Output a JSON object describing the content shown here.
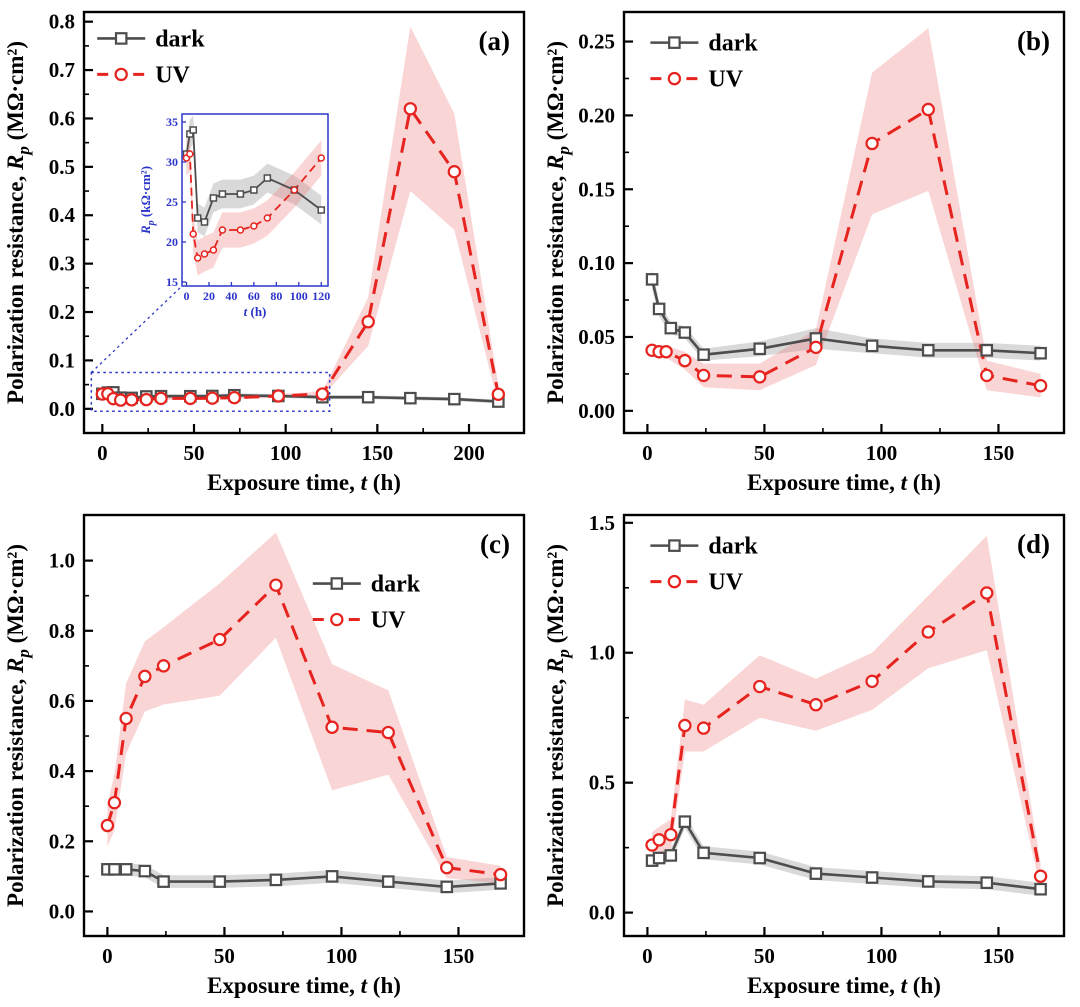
{
  "figure": {
    "background": "#ffffff",
    "colors": {
      "dark": "#4d4d4d",
      "uv": "#e6231e",
      "dark_band": "#a0a0a0",
      "uv_band": "#ef7f7f",
      "inset_accent": "#2b35c8",
      "marker_fill": "#ffffff",
      "frame": "#000000"
    },
    "legend_labels": {
      "dark": "dark",
      "uv": "UV"
    }
  },
  "chart_data": [
    {
      "id": "a",
      "type": "line",
      "panel_label": "(a)",
      "xlabel": {
        "prefix": "Exposure time, ",
        "symbol": "t",
        "suffix": " (h)"
      },
      "ylabel": {
        "prefix": "Polarization resistance, ",
        "symbol": "R",
        "sub": "p",
        "suffix": " (MΩ·cm²)"
      },
      "xlim": [
        -10,
        230
      ],
      "ylim": [
        -0.05,
        0.82
      ],
      "xticks": {
        "v": [
          0,
          50,
          100,
          150,
          200
        ],
        "l": [
          "0",
          "50",
          "100",
          "150",
          "200"
        ]
      },
      "yticks": {
        "v": [
          0,
          0.1,
          0.2,
          0.3,
          0.4,
          0.5,
          0.6,
          0.7,
          0.8
        ],
        "l": [
          "0.0",
          "0.1",
          "0.2",
          "0.3",
          "0.4",
          "0.5",
          "0.6",
          "0.7",
          "0.8"
        ]
      },
      "legend": {
        "fx": 0.03,
        "fy": 0.02
      },
      "series": [
        {
          "key": "dark",
          "x": [
            0,
            3,
            6,
            10,
            16,
            24,
            32,
            48,
            60,
            72,
            96,
            120,
            145,
            168,
            192,
            216
          ],
          "y": [
            0.031,
            0.0335,
            0.034,
            0.023,
            0.0225,
            0.0255,
            0.026,
            0.026,
            0.0265,
            0.028,
            0.0265,
            0.024,
            0.024,
            0.022,
            0.02,
            0.015
          ],
          "err": [
            0.004,
            0.004,
            0.004,
            0.004,
            0.004,
            0.004,
            0.004,
            0.004,
            0.004,
            0.004,
            0.004,
            0.004,
            0.004,
            0.004,
            0.004,
            0.004
          ]
        },
        {
          "key": "uv",
          "x": [
            0,
            3,
            6,
            10,
            16,
            24,
            32,
            48,
            60,
            72,
            96,
            120,
            145,
            168,
            192,
            216
          ],
          "y": [
            0.0305,
            0.031,
            0.021,
            0.018,
            0.0185,
            0.019,
            0.0215,
            0.0215,
            0.022,
            0.023,
            0.0265,
            0.0305,
            0.18,
            0.62,
            0.49,
            0.03
          ],
          "err": [
            0.003,
            0.003,
            0.003,
            0.003,
            0.003,
            0.003,
            0.003,
            0.003,
            0.003,
            0.003,
            0.004,
            0.005,
            0.05,
            0.17,
            0.12,
            0.02
          ]
        }
      ],
      "zoom_rect": {
        "x0": -6,
        "y0": -0.005,
        "x1": 124,
        "y1": 0.075
      },
      "inset": {
        "xlabel": {
          "symbol": "t",
          "suffix": " (h)"
        },
        "ylabel": {
          "symbol": "R",
          "sub": "p",
          "suffix": " (kΩ·cm²)"
        },
        "xlim": [
          -4,
          126
        ],
        "ylim": [
          14.5,
          36
        ],
        "xticks": {
          "v": [
            0,
            20,
            40,
            60,
            80,
            100,
            120
          ],
          "l": [
            "0",
            "20",
            "40",
            "60",
            "80",
            "100",
            "120"
          ]
        },
        "yticks": {
          "v": [
            15,
            20,
            25,
            30,
            35
          ],
          "l": [
            "15",
            "20",
            "25",
            "30",
            "35"
          ]
        },
        "series": [
          {
            "key": "dark",
            "x": [
              0,
              3,
              6,
              10,
              16,
              24,
              32,
              48,
              60,
              72,
              96,
              120
            ],
            "y": [
              31,
              33.5,
              34,
              23,
              22.5,
              25.5,
              26,
              26,
              26.5,
              28,
              26.5,
              24
            ],
            "err": [
              1.8,
              1.8,
              1.8,
              1.8,
              1.8,
              1.8,
              1.8,
              1.8,
              1.8,
              1.8,
              1.8,
              1.8
            ]
          },
          {
            "key": "uv",
            "x": [
              0,
              3,
              6,
              10,
              16,
              24,
              32,
              48,
              60,
              72,
              96,
              120
            ],
            "y": [
              30.5,
              31,
              21,
              18,
              18.5,
              19,
              21.5,
              21.5,
              22,
              23,
              26.5,
              30.5
            ],
            "err": [
              2.2,
              2.2,
              2.2,
              2.2,
              2.2,
              2.2,
              2.2,
              2.2,
              2.2,
              2.2,
              2.2,
              2.2
            ]
          }
        ]
      }
    },
    {
      "id": "b",
      "type": "line",
      "panel_label": "(b)",
      "xlabel": {
        "prefix": "Exposure time, ",
        "symbol": "t",
        "suffix": " (h)"
      },
      "ylabel": {
        "prefix": "Polarization resistance, ",
        "symbol": "R",
        "sub": "p",
        "suffix": " (MΩ·cm²)"
      },
      "xlim": [
        -10,
        178
      ],
      "ylim": [
        -0.015,
        0.27
      ],
      "xticks": {
        "v": [
          0,
          50,
          100,
          150
        ],
        "l": [
          "0",
          "50",
          "100",
          "150"
        ]
      },
      "yticks": {
        "v": [
          0,
          0.05,
          0.1,
          0.15,
          0.2,
          0.25
        ],
        "l": [
          "0.00",
          "0.05",
          "0.10",
          "0.15",
          "0.20",
          "0.25"
        ]
      },
      "legend": {
        "fx": 0.06,
        "fy": 0.03
      },
      "series": [
        {
          "key": "dark",
          "x": [
            2,
            5,
            10,
            16,
            24,
            48,
            72,
            96,
            120,
            145,
            168
          ],
          "y": [
            0.089,
            0.069,
            0.056,
            0.053,
            0.038,
            0.042,
            0.049,
            0.044,
            0.041,
            0.041,
            0.039
          ],
          "err": [
            0.007,
            0.005,
            0.004,
            0.004,
            0.004,
            0.005,
            0.007,
            0.005,
            0.005,
            0.005,
            0.005
          ]
        },
        {
          "key": "uv",
          "x": [
            2,
            5,
            8,
            16,
            24,
            48,
            72,
            96,
            120,
            145,
            168
          ],
          "y": [
            0.041,
            0.04,
            0.04,
            0.034,
            0.024,
            0.023,
            0.043,
            0.181,
            0.204,
            0.024,
            0.017
          ],
          "err": [
            0.004,
            0.004,
            0.004,
            0.006,
            0.008,
            0.009,
            0.012,
            0.048,
            0.055,
            0.01,
            0.008
          ]
        }
      ]
    },
    {
      "id": "c",
      "type": "line",
      "panel_label": "(c)",
      "xlabel": {
        "prefix": "Exposure time, ",
        "symbol": "t",
        "suffix": " (h)"
      },
      "ylabel": {
        "prefix": "Polarization resistance, ",
        "symbol": "R",
        "sub": "p",
        "suffix": " (MΩ·cm²)"
      },
      "xlim": [
        -10,
        178
      ],
      "ylim": [
        -0.07,
        1.13
      ],
      "xticks": {
        "v": [
          0,
          50,
          100,
          150
        ],
        "l": [
          "0",
          "50",
          "100",
          "150"
        ]
      },
      "yticks": {
        "v": [
          0,
          0.2,
          0.4,
          0.6,
          0.8,
          1.0
        ],
        "l": [
          "0.0",
          "0.2",
          "0.4",
          "0.6",
          "0.8",
          "1.0"
        ]
      },
      "legend": {
        "fx": 0.52,
        "fy": 0.12
      },
      "series": [
        {
          "key": "dark",
          "x": [
            0,
            3,
            8,
            16,
            24,
            48,
            72,
            96,
            120,
            145,
            168
          ],
          "y": [
            0.12,
            0.12,
            0.12,
            0.115,
            0.085,
            0.085,
            0.09,
            0.1,
            0.085,
            0.07,
            0.08
          ],
          "err": [
            0.018,
            0.018,
            0.018,
            0.018,
            0.018,
            0.018,
            0.018,
            0.018,
            0.018,
            0.018,
            0.018
          ]
        },
        {
          "key": "uv",
          "x": [
            0,
            3,
            8,
            16,
            24,
            48,
            72,
            96,
            120,
            145,
            168
          ],
          "y": [
            0.245,
            0.31,
            0.55,
            0.67,
            0.7,
            0.775,
            0.93,
            0.525,
            0.51,
            0.125,
            0.105
          ],
          "err": [
            0.06,
            0.08,
            0.1,
            0.1,
            0.11,
            0.16,
            0.15,
            0.18,
            0.12,
            0.03,
            0.025
          ]
        }
      ]
    },
    {
      "id": "d",
      "type": "line",
      "panel_label": "(d)",
      "xlabel": {
        "prefix": "Exposure time, ",
        "symbol": "t",
        "suffix": " (h)"
      },
      "ylabel": {
        "prefix": "Polarization resistance, ",
        "symbol": "R",
        "sub": "p",
        "suffix": " (MΩ·cm²)"
      },
      "xlim": [
        -10,
        178
      ],
      "ylim": [
        -0.09,
        1.53
      ],
      "xticks": {
        "v": [
          0,
          50,
          100,
          150
        ],
        "l": [
          "0",
          "50",
          "100",
          "150"
        ]
      },
      "yticks": {
        "v": [
          0,
          0.5,
          1.0,
          1.5
        ],
        "l": [
          "0.0",
          "0.5",
          "1.0",
          "1.5"
        ]
      },
      "legend": {
        "fx": 0.06,
        "fy": 0.03
      },
      "series": [
        {
          "key": "dark",
          "x": [
            2,
            5,
            10,
            16,
            24,
            48,
            72,
            96,
            120,
            145,
            168
          ],
          "y": [
            0.2,
            0.21,
            0.22,
            0.35,
            0.23,
            0.21,
            0.15,
            0.135,
            0.12,
            0.115,
            0.09
          ],
          "err": [
            0.025,
            0.025,
            0.025,
            0.025,
            0.025,
            0.025,
            0.025,
            0.025,
            0.025,
            0.025,
            0.025
          ]
        },
        {
          "key": "uv",
          "x": [
            2,
            5,
            10,
            16,
            24,
            48,
            72,
            96,
            120,
            145,
            168
          ],
          "y": [
            0.26,
            0.28,
            0.3,
            0.72,
            0.71,
            0.87,
            0.8,
            0.89,
            1.08,
            1.23,
            0.14
          ],
          "err": [
            0.05,
            0.05,
            0.06,
            0.1,
            0.09,
            0.12,
            0.1,
            0.11,
            0.14,
            0.22,
            0.05
          ]
        }
      ]
    }
  ]
}
